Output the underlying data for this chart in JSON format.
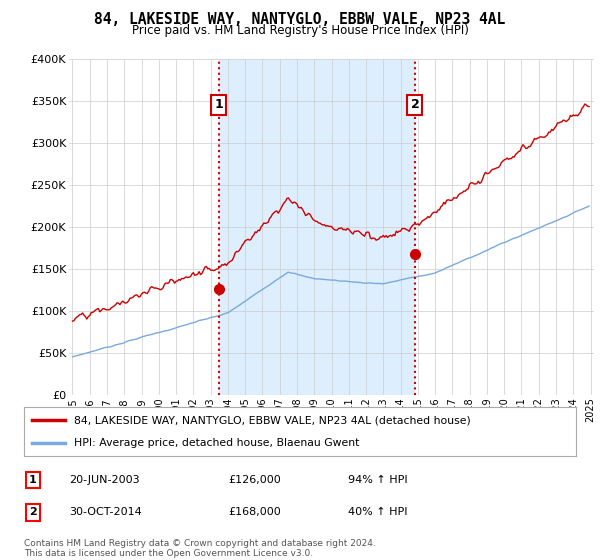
{
  "title": "84, LAKESIDE WAY, NANTYGLO, EBBW VALE, NP23 4AL",
  "subtitle": "Price paid vs. HM Land Registry's House Price Index (HPI)",
  "legend_line1": "84, LAKESIDE WAY, NANTYGLO, EBBW VALE, NP23 4AL (detached house)",
  "legend_line2": "HPI: Average price, detached house, Blaenau Gwent",
  "transaction1_date": "20-JUN-2003",
  "transaction1_price": 126000,
  "transaction1_hpi": "94% ↑ HPI",
  "transaction2_date": "30-OCT-2014",
  "transaction2_price": 168000,
  "transaction2_hpi": "40% ↑ HPI",
  "footnote": "Contains HM Land Registry data © Crown copyright and database right 2024.\nThis data is licensed under the Open Government Licence v3.0.",
  "hpi_color": "#7aaadd",
  "price_color": "#cc0000",
  "marker_color": "#cc0000",
  "vline_color": "#cc0000",
  "shade_color": "#ddeeff",
  "background_color": "#ffffff",
  "grid_color": "#cccccc",
  "ylim": [
    0,
    400000
  ],
  "yticks": [
    0,
    50000,
    100000,
    150000,
    200000,
    250000,
    300000,
    350000,
    400000
  ],
  "ylabels": [
    "£0",
    "£50K",
    "£100K",
    "£150K",
    "£200K",
    "£250K",
    "£300K",
    "£350K",
    "£400K"
  ],
  "start_year": 1995,
  "end_year": 2025,
  "transaction1_year": 2003.47,
  "transaction2_year": 2014.83
}
